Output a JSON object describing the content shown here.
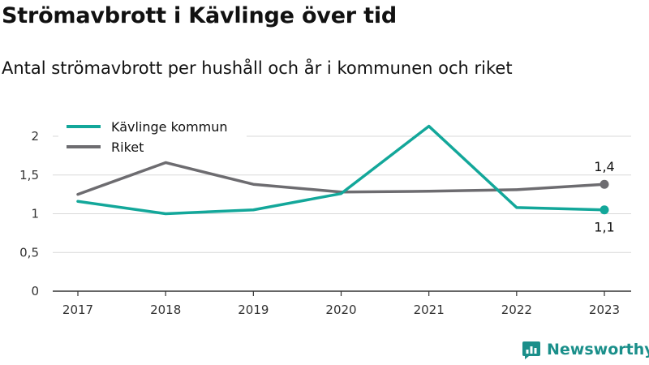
{
  "header": {
    "title": "Strömavbrott i Kävlinge över tid",
    "subtitle": "Antal strömavbrott per hushåll och år i kommunen och riket"
  },
  "brand": {
    "name": "Newsworthy",
    "icon": "newsworthy-logo-icon",
    "color": "#1a8f8a"
  },
  "chart_data": {
    "type": "line",
    "title": "Strömavbrott i Kävlinge över tid",
    "subtitle": "Antal strömavbrott per hushåll och år i kommunen och riket",
    "xlabel": "",
    "ylabel": "",
    "categories": [
      "2017",
      "2018",
      "2019",
      "2020",
      "2021",
      "2022",
      "2023"
    ],
    "ylim": [
      0,
      2.2
    ],
    "yticks": [
      0,
      0.5,
      1,
      1.5,
      2
    ],
    "ytick_labels": [
      "0",
      "0,5",
      "1",
      "1,5",
      "2"
    ],
    "grid": "horizontal",
    "legend_position": "top-left",
    "series": [
      {
        "name": "Kävlinge kommun",
        "color": "#13a79a",
        "values": [
          1.16,
          1.0,
          1.05,
          1.26,
          2.13,
          1.08,
          1.05
        ],
        "end_label": "1,1",
        "end_label_position": "below"
      },
      {
        "name": "Riket",
        "color": "#6d6c70",
        "values": [
          1.25,
          1.66,
          1.38,
          1.28,
          1.29,
          1.31,
          1.38
        ],
        "end_label": "1,4",
        "end_label_position": "above"
      }
    ]
  }
}
